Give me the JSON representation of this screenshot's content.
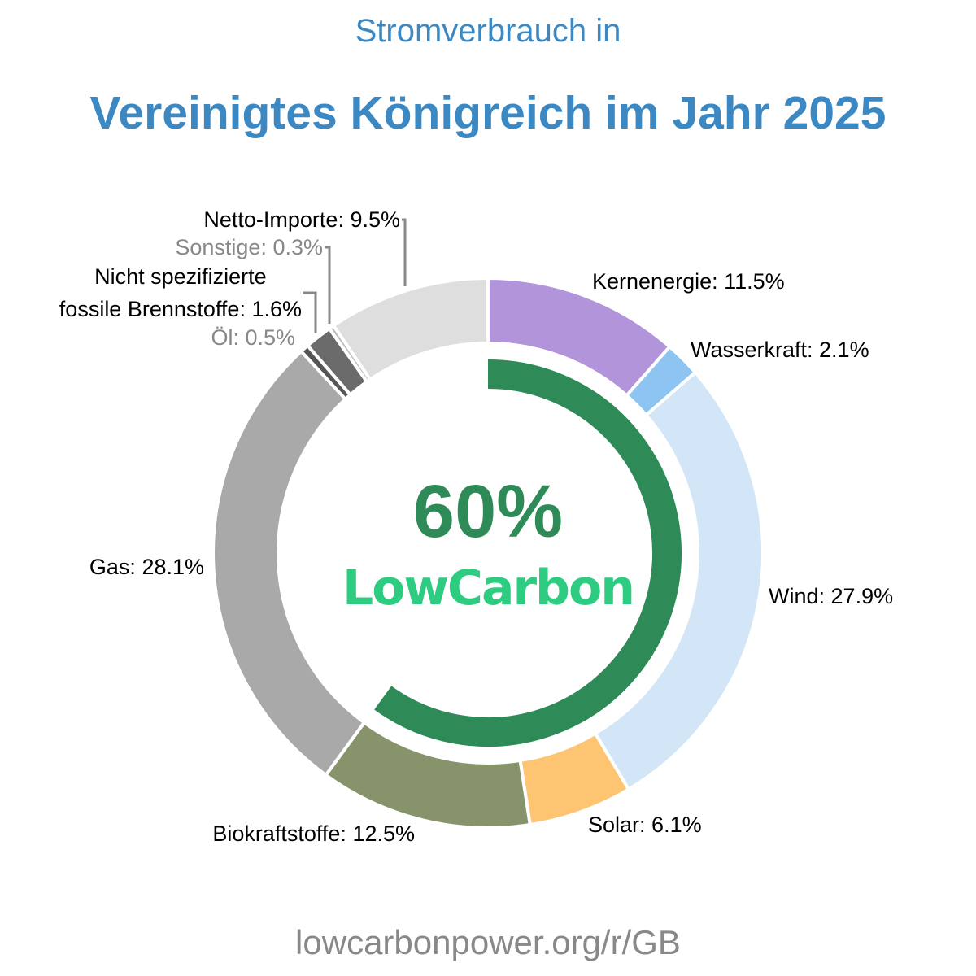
{
  "chart_data": {
    "type": "donut",
    "subtitle": "Stromverbrauch in",
    "title": "Vereinigtes Königreich im Jahr 2025",
    "categories": [
      "Kernenergie",
      "Wasserkraft",
      "Wind",
      "Solar",
      "Biokraftstoffe",
      "Gas",
      "Öl",
      "Nicht spezifizierte\nfossile Brennstoffe",
      "Sonstige",
      "Netto-Importe"
    ],
    "values": [
      11.5,
      2.1,
      27.9,
      6.1,
      12.5,
      28.1,
      0.5,
      1.6,
      0.3,
      9.5
    ],
    "value_labels": [
      "11.5%",
      "2.1%",
      "27.9%",
      "6.1%",
      "12.5%",
      "28.1%",
      "0.5%",
      "1.6%",
      "0.3%",
      "9.5%"
    ],
    "colors": [
      "#b294db",
      "#8ec4f2",
      "#d2e6f7",
      "#fdc572",
      "#87946b",
      "#a9a9a9",
      "#555555",
      "#6b6b6b",
      "#bdbdbd",
      "#dedede"
    ],
    "label_colors": [
      "#000000",
      "#000000",
      "#000000",
      "#000000",
      "#000000",
      "#000000",
      "#888888",
      "#000000",
      "#888888",
      "#000000"
    ],
    "center": {
      "value": 60,
      "label": "60%",
      "text": "LowCarbon",
      "color": "#2e8b57",
      "text_color": "#2ecc80"
    },
    "footer": "lowcarbonpower.org/r/GB"
  }
}
